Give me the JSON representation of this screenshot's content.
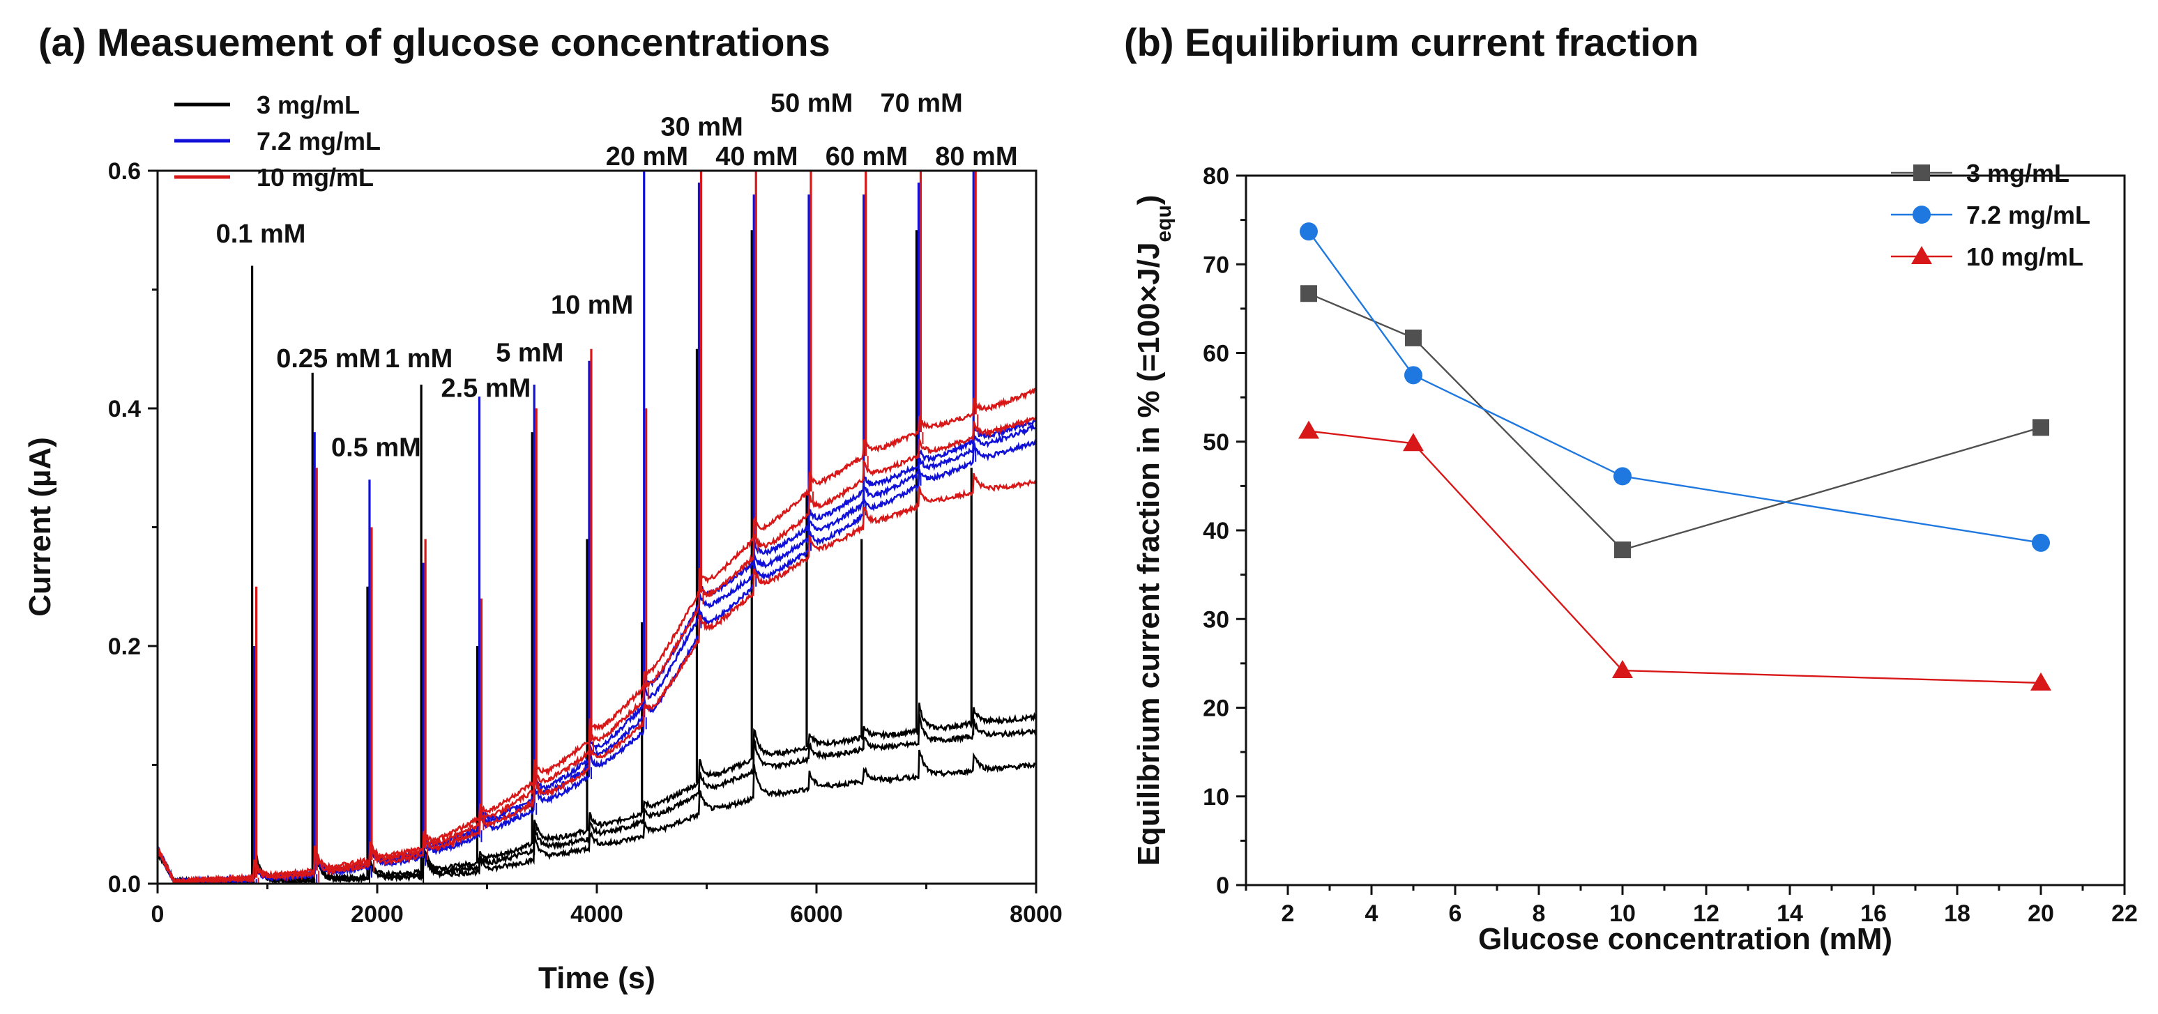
{
  "chart_data": [
    {
      "type": "line",
      "title": "(a) Measuement of glucose concentrations",
      "xlabel": "Time (s)",
      "ylabel": "Current (µA)",
      "xlim": [
        0,
        8000
      ],
      "ylim": [
        0,
        0.6
      ],
      "xticks": [
        "0",
        "2000",
        "4000",
        "6000",
        "8000"
      ],
      "yticks": [
        "0.0",
        "0.2",
        "0.4",
        "0.6"
      ],
      "grid": false,
      "legend_position": "top-left",
      "injection_times": [
        880,
        1430,
        1930,
        2420,
        2930,
        3430,
        3930,
        4430,
        4930,
        5430,
        5930,
        6430,
        6930,
        7430
      ],
      "annotations": [
        {
          "text": "0.1 mM",
          "x": 880,
          "y": 0.535
        },
        {
          "text": "0.25 mM",
          "x": 1430,
          "y": 0.43
        },
        {
          "text": "0.5 mM",
          "x": 1930,
          "y": 0.355
        },
        {
          "text": "1 mM",
          "x": 2420,
          "y": 0.43
        },
        {
          "text": "2.5 mM",
          "x": 2930,
          "y": 0.405
        },
        {
          "text": "5 mM",
          "x": 3430,
          "y": 0.435
        },
        {
          "text": "10 mM",
          "x": 3930,
          "y": 0.475
        },
        {
          "text": "20 mM",
          "x": 4430,
          "y": 0.6
        },
        {
          "text": "30 mM",
          "x": 4930,
          "y": 0.625
        },
        {
          "text": "40 mM",
          "x": 5430,
          "y": 0.6
        },
        {
          "text": "50 mM",
          "x": 5930,
          "y": 0.645
        },
        {
          "text": "60 mM",
          "x": 6430,
          "y": 0.6
        },
        {
          "text": "70 mM",
          "x": 6930,
          "y": 0.645
        },
        {
          "text": "80 mM",
          "x": 7430,
          "y": 0.6
        }
      ],
      "series": [
        {
          "name": "3  mg/mL",
          "color": "#000000",
          "spike_peaks": [
            0.52,
            0.43,
            0.25,
            0.42,
            0.2,
            0.38,
            0.29,
            0.22,
            0.45,
            0.55,
            0.33,
            0.29,
            0.55,
            0.35
          ],
          "runs": [
            {
              "x": [
                0,
                150,
                880,
                1430,
                1930,
                2420,
                2930,
                3430,
                3930,
                4430,
                4930,
                5430,
                5930,
                6430,
                6930,
                7430,
                8000
              ],
              "y": [
                0.03,
                0.002,
                0.002,
                0.004,
                0.006,
                0.01,
                0.018,
                0.034,
                0.045,
                0.06,
                0.085,
                0.105,
                0.115,
                0.123,
                0.128,
                0.135,
                0.14
              ]
            },
            {
              "x": [
                0,
                150,
                880,
                1430,
                1930,
                2420,
                2930,
                3430,
                3930,
                4430,
                4930,
                5430,
                5930,
                6430,
                6930,
                7430,
                8000
              ],
              "y": [
                0.028,
                0.002,
                0.002,
                0.003,
                0.005,
                0.008,
                0.014,
                0.028,
                0.038,
                0.052,
                0.075,
                0.095,
                0.105,
                0.113,
                0.118,
                0.124,
                0.128
              ]
            },
            {
              "x": [
                0,
                150,
                880,
                1430,
                1930,
                2420,
                2930,
                3430,
                3930,
                4430,
                4930,
                5430,
                5930,
                6430,
                6930,
                7430,
                8000
              ],
              "y": [
                0.026,
                0.002,
                0.002,
                0.003,
                0.004,
                0.006,
                0.01,
                0.02,
                0.03,
                0.04,
                0.058,
                0.072,
                0.08,
                0.086,
                0.09,
                0.095,
                0.1
              ]
            }
          ]
        },
        {
          "name": "7.2  mg/mL",
          "color": "#1010d8",
          "spike_peaks": [
            0.2,
            0.38,
            0.34,
            0.27,
            0.41,
            0.42,
            0.44,
            0.6,
            0.59,
            0.58,
            0.58,
            0.58,
            0.59,
            0.6
          ],
          "runs": [
            {
              "x": [
                0,
                150,
                880,
                1430,
                1930,
                2420,
                2930,
                3430,
                3930,
                4430,
                4930,
                5430,
                5930,
                6430,
                6930,
                7430,
                8000
              ],
              "y": [
                0.03,
                0.002,
                0.004,
                0.008,
                0.015,
                0.025,
                0.045,
                0.068,
                0.098,
                0.14,
                0.225,
                0.26,
                0.29,
                0.32,
                0.345,
                0.365,
                0.385
              ]
            },
            {
              "x": [
                0,
                150,
                880,
                1430,
                1930,
                2420,
                2930,
                3430,
                3930,
                4430,
                4930,
                5430,
                5930,
                6430,
                6930,
                7430,
                8000
              ],
              "y": [
                0.03,
                0.002,
                0.004,
                0.009,
                0.017,
                0.027,
                0.048,
                0.072,
                0.104,
                0.15,
                0.235,
                0.27,
                0.3,
                0.33,
                0.352,
                0.372,
                0.39
              ]
            },
            {
              "x": [
                0,
                150,
                880,
                1430,
                1930,
                2420,
                2930,
                3430,
                3930,
                4430,
                4930,
                5430,
                5930,
                6430,
                6930,
                7430,
                8000
              ],
              "y": [
                0.028,
                0.002,
                0.003,
                0.007,
                0.014,
                0.022,
                0.04,
                0.062,
                0.09,
                0.128,
                0.21,
                0.25,
                0.28,
                0.31,
                0.335,
                0.355,
                0.372
              ]
            }
          ]
        },
        {
          "name": "10  mg/mL",
          "color": "#d81818",
          "spike_peaks": [
            0.25,
            0.35,
            0.3,
            0.29,
            0.24,
            0.4,
            0.45,
            0.4,
            0.6,
            0.6,
            0.6,
            0.6,
            0.6,
            0.6
          ],
          "runs": [
            {
              "x": [
                0,
                150,
                880,
                1430,
                1930,
                2420,
                2930,
                3430,
                3930,
                4430,
                4930,
                5430,
                5930,
                6430,
                6930,
                7430,
                8000
              ],
              "y": [
                0.03,
                0.002,
                0.005,
                0.011,
                0.02,
                0.03,
                0.055,
                0.085,
                0.12,
                0.165,
                0.245,
                0.29,
                0.33,
                0.36,
                0.38,
                0.395,
                0.415
              ]
            },
            {
              "x": [
                0,
                150,
                880,
                1430,
                1930,
                2420,
                2930,
                3430,
                3930,
                4430,
                4930,
                5430,
                5930,
                6430,
                6930,
                7430,
                8000
              ],
              "y": [
                0.03,
                0.002,
                0.005,
                0.01,
                0.018,
                0.028,
                0.05,
                0.078,
                0.11,
                0.155,
                0.232,
                0.275,
                0.31,
                0.34,
                0.36,
                0.375,
                0.392
              ]
            },
            {
              "x": [
                0,
                150,
                880,
                1430,
                1930,
                2420,
                2930,
                3430,
                3930,
                4430,
                4930,
                5430,
                5930,
                6430,
                6930,
                7430,
                8000
              ],
              "y": [
                0.028,
                0.002,
                0.004,
                0.008,
                0.015,
                0.024,
                0.044,
                0.068,
                0.096,
                0.135,
                0.205,
                0.245,
                0.275,
                0.3,
                0.318,
                0.33,
                0.338
              ]
            }
          ]
        }
      ]
    },
    {
      "type": "line",
      "title": "(b) Equilibrium current fraction",
      "xlabel": "Glucose concentration (mM)",
      "ylabel": "Equilibrium current fraction in % (=100×J/J",
      "ylabel_sub": "equ",
      "ylabel_end": ")",
      "xlim": [
        1,
        22
      ],
      "ylim": [
        0,
        80
      ],
      "xticks": [
        "2",
        "4",
        "6",
        "8",
        "10",
        "12",
        "14",
        "16",
        "18",
        "20",
        "22"
      ],
      "yticks": [
        "0",
        "10",
        "20",
        "30",
        "40",
        "50",
        "60",
        "70",
        "80"
      ],
      "grid": false,
      "legend_position": "top-right",
      "x": [
        2.5,
        5,
        10,
        20
      ],
      "series": [
        {
          "name": "3  mg/mL",
          "color": "#505050",
          "marker": "square",
          "values": [
            66.7,
            61.7,
            37.8,
            51.6
          ]
        },
        {
          "name": "7.2  mg/mL",
          "color": "#1f78e0",
          "marker": "circle",
          "values": [
            73.7,
            57.5,
            46.1,
            38.6
          ]
        },
        {
          "name": "10  mg/mL",
          "color": "#d81818",
          "marker": "triangle",
          "values": [
            51.2,
            49.8,
            24.2,
            22.8
          ]
        }
      ]
    }
  ]
}
